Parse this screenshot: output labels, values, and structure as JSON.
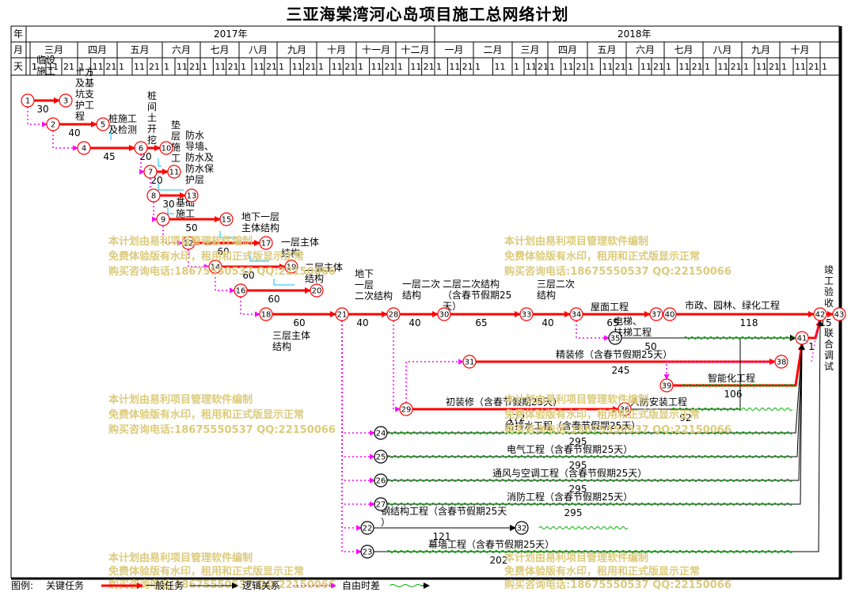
{
  "title": "三亚海棠湾河心岛项目施工总网络计划",
  "header": {
    "row_labels": [
      "年",
      "月",
      "天"
    ],
    "years": [
      "2017年",
      "2018年"
    ],
    "months": [
      "三月",
      "四月",
      "五月",
      "六月",
      "七月",
      "八月",
      "九月",
      "十月",
      "十一月",
      "十二月",
      "一月",
      "二月",
      "三月",
      "四月",
      "五月",
      "六月",
      "七月",
      "八月",
      "九月",
      "十月"
    ],
    "days": [
      "1",
      "1",
      "11",
      "21",
      "1",
      "11",
      "21",
      "1",
      "11",
      "21",
      "1",
      "11",
      "21",
      "1",
      "11",
      "21",
      "1",
      "11",
      "21",
      "1",
      "11",
      "21",
      "1",
      "11",
      "21",
      "1",
      "11",
      "21",
      "1",
      "11",
      "21",
      "1",
      "11",
      "21",
      "1",
      "11",
      "1",
      "11",
      "21",
      "1",
      "11",
      "21",
      "1",
      "11",
      "21",
      "1",
      "11",
      "21",
      "1",
      "11",
      "21",
      "1",
      "11",
      "21",
      "1",
      "11",
      "21",
      "1",
      "11",
      "21",
      "1"
    ]
  },
  "tasks": [
    {
      "label": "临设施工",
      "duration": "30"
    },
    {
      "label": "土方及基坑支护工程",
      "duration": "40"
    },
    {
      "label": "桩施工及检测",
      "duration": "45"
    },
    {
      "label": "桩间土开挖",
      "duration": "20"
    },
    {
      "label": "垫层施工",
      "duration": "20"
    },
    {
      "label": "防水导墙、防水及防水保护层施工",
      "duration": "30"
    },
    {
      "label": "基础施工",
      "duration": "50"
    },
    {
      "label": "地下一层主体结构",
      "duration": "60"
    },
    {
      "label": "一层主体结构",
      "duration": "60"
    },
    {
      "label": "二层主体结构",
      "duration": "60"
    },
    {
      "label": "三层主体结构",
      "duration": "60"
    },
    {
      "label": "地下一层二次结构",
      "duration": "40"
    },
    {
      "label": "一层二次结构",
      "duration": "40"
    },
    {
      "label": "二层二次结构（含春节假期25天）",
      "duration": "65"
    },
    {
      "label": "三层二次结构",
      "duration": "40"
    },
    {
      "label": "屋面工程",
      "duration": "65"
    },
    {
      "label": "电梯、扶梯工程",
      "duration": "50"
    },
    {
      "label": "市政、园林、绿化工程",
      "duration": "118"
    },
    {
      "label": "竣工验收",
      "duration": "15"
    },
    {
      "label": "联合调试",
      "duration": "1"
    },
    {
      "label": "精装修（含春节假期25天）",
      "duration": "245"
    },
    {
      "label": "智能化工程",
      "duration": "106"
    },
    {
      "label": "初装修（含春节假期25天）",
      "duration": "172"
    },
    {
      "label": "人防安装工程",
      "duration": "92"
    },
    {
      "label": "给排水工程（含春节假期25天）",
      "duration": "295"
    },
    {
      "label": "电气工程（含春节假期25天）",
      "duration": "295"
    },
    {
      "label": "通风与空调工程（含春节假期25天）",
      "duration": "295"
    },
    {
      "label": "消防工程（含春节假期25天）",
      "duration": "295"
    },
    {
      "label": "钢结构工程（含春节假期25天）",
      "duration": "121"
    },
    {
      "label": "幕墙工程（含春节假期25天）",
      "duration": "202"
    }
  ],
  "nodes": [
    "1",
    "2",
    "3",
    "4",
    "5",
    "6",
    "7",
    "8",
    "9",
    "10",
    "11",
    "12",
    "13",
    "14",
    "15",
    "16",
    "17",
    "18",
    "19",
    "20",
    "21",
    "22",
    "23",
    "24",
    "25",
    "26",
    "27",
    "28",
    "29",
    "30",
    "31",
    "32",
    "33",
    "34",
    "35",
    "36",
    "37",
    "38",
    "39",
    "40",
    "41",
    "42",
    "43"
  ],
  "watermark": [
    "本计划由易利项目管理软件编制",
    "免费体验版有水印，租用和正式版显示正常",
    "购买咨询电话:18675550537 QQ:22150066"
  ],
  "legend": {
    "title": "图例:",
    "critical": "关键任务",
    "normal": "一般任务",
    "logic": "逻辑关系",
    "float": "自由时差"
  },
  "colors": {
    "critical": "#ff0000",
    "logic": "#ff00ff",
    "float": "#00b000",
    "link": "#00c0ff",
    "watermark": "#dccb7c"
  }
}
